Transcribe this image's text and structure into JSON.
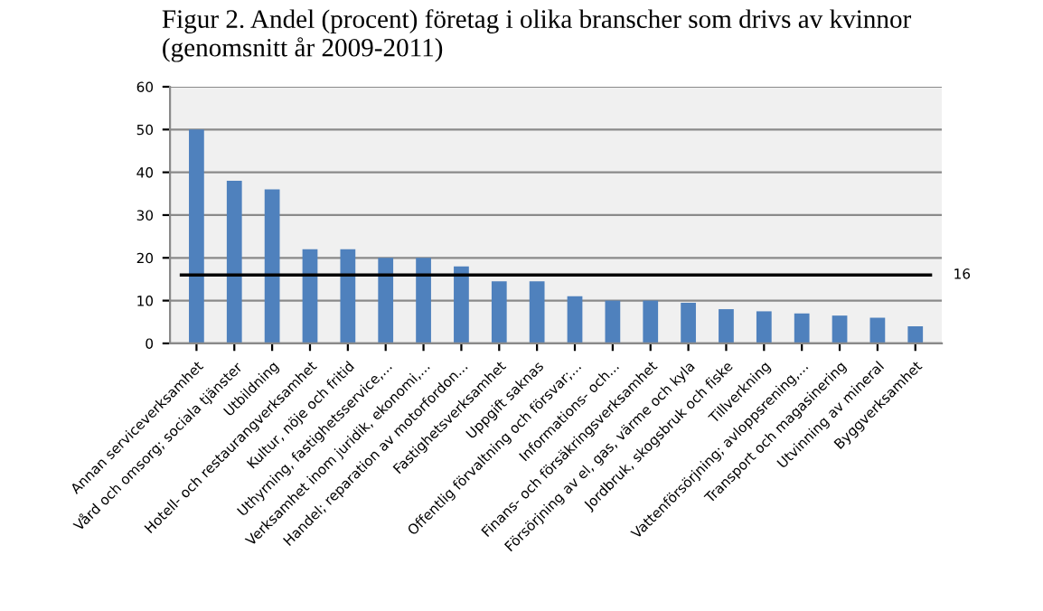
{
  "chart_data": {
    "type": "bar",
    "title": "Figur 2. Andel (procent) företag i olika branscher som drivs av kvinnor (genomsnitt år 2009-2011)",
    "categories": [
      "Annan serviceverksamhet",
      "Vård och omsorg; sociala tjänster",
      "Utbildning",
      "Hotell- och restaurangverksamhet",
      "Kultur, nöje och fritid",
      "Uthyrning, fastighetsservice,...",
      "Verksamhet inom juridik, ekonomi,...",
      "Handel; reparation av motorfordon...",
      "Fastighetsverksamhet",
      "Uppgift saknas",
      "Offentlig förvaltning och försvar;...",
      "Informations- och...",
      "Finans- och försäkringsverksamhet",
      "Försörjning av el, gas, värme och kyla",
      "Jordbruk, skogsbruk och fiske",
      "Tillverkning",
      "Vattenförsörjning; avloppsrening,...",
      "Transport och magasinering",
      "Utvinning av mineral",
      "Byggverksamhet"
    ],
    "values": [
      50,
      38,
      36,
      22,
      22,
      20,
      20,
      18,
      14.5,
      14.5,
      11,
      10,
      10,
      9.5,
      8,
      7.5,
      7,
      6.5,
      6,
      4
    ],
    "color": "#4f81bd",
    "ylim": [
      0,
      60
    ],
    "yticks": [
      0,
      10,
      20,
      30,
      40,
      50,
      60
    ],
    "grid": "y",
    "ref_lines": [
      {
        "axis": "y",
        "value": 16,
        "label": "16",
        "color": "#000000"
      }
    ]
  }
}
